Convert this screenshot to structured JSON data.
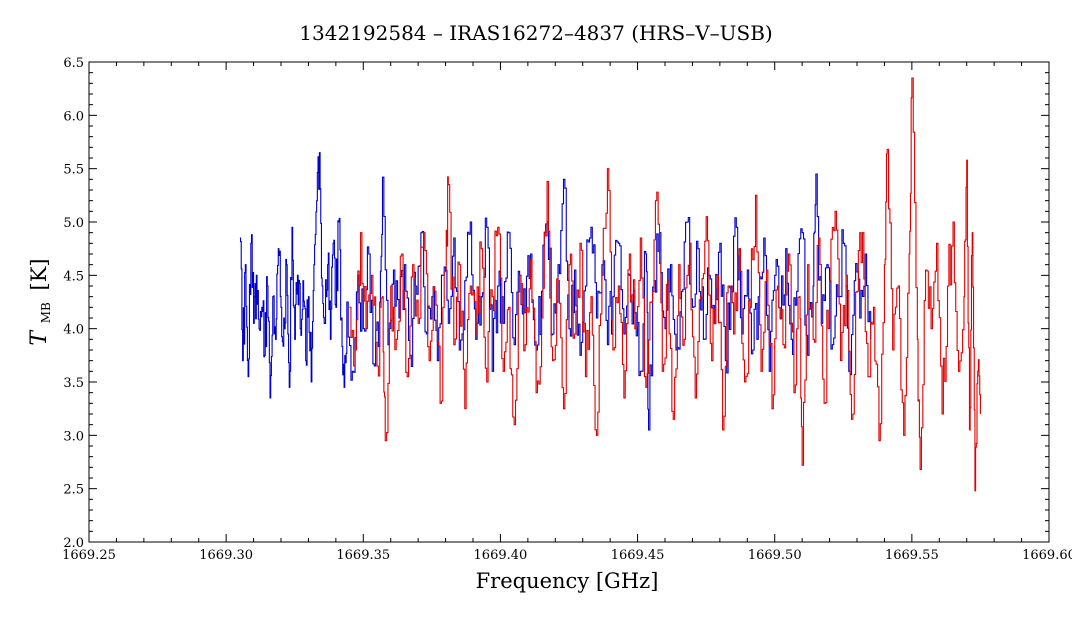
{
  "chart_data": {
    "type": "line",
    "title": "1342192584 – IRAS16272–4837 (HRS–V–USB)",
    "xlabel": "Frequency [GHz]",
    "ylabel_main": "T",
    "ylabel_sub": "MB",
    "ylabel_unit": "[K]",
    "xlim": [
      1669.25,
      1669.6
    ],
    "ylim": [
      2.0,
      6.5
    ],
    "x_ticks": [
      "1669.25",
      "1669.30",
      "1669.35",
      "1669.40",
      "1669.45",
      "1669.50",
      "1669.55",
      "1669.60"
    ],
    "y_ticks": [
      "2.0",
      "2.5",
      "3.0",
      "3.5",
      "4.0",
      "4.5",
      "5.0",
      "5.5",
      "6.0",
      "6.5"
    ],
    "grid": false,
    "series": [
      {
        "color": "#0000cc",
        "x_range": [
          1669.305,
          1669.535
        ],
        "points": [
          [
            1669.305,
            4.85
          ],
          [
            1669.306,
            3.7
          ],
          [
            1669.307,
            4.6
          ],
          [
            1669.308,
            3.55
          ],
          [
            1669.309,
            4.8
          ],
          [
            1669.31,
            4.05
          ],
          [
            1669.311,
            4.5
          ],
          [
            1669.312,
            4.0
          ],
          [
            1669.313,
            4.2
          ],
          [
            1669.314,
            3.75
          ],
          [
            1669.315,
            4.4
          ],
          [
            1669.316,
            3.35
          ],
          [
            1669.317,
            4.3
          ],
          [
            1669.318,
            3.9
          ],
          [
            1669.319,
            4.75
          ],
          [
            1669.32,
            4.2
          ],
          [
            1669.321,
            4.1
          ],
          [
            1669.322,
            4.6
          ],
          [
            1669.323,
            3.45
          ],
          [
            1669.324,
            4.95
          ],
          [
            1669.325,
            3.9
          ],
          [
            1669.326,
            4.5
          ],
          [
            1669.327,
            4.0
          ],
          [
            1669.328,
            4.45
          ],
          [
            1669.329,
            3.7
          ],
          [
            1669.33,
            4.3
          ],
          [
            1669.331,
            3.5
          ],
          [
            1669.332,
            4.6
          ],
          [
            1669.333,
            5.2
          ],
          [
            1669.334,
            5.65
          ],
          [
            1669.335,
            4.4
          ],
          [
            1669.336,
            4.05
          ],
          [
            1669.337,
            4.6
          ],
          [
            1669.338,
            3.9
          ],
          [
            1669.339,
            4.8
          ],
          [
            1669.34,
            4.2
          ],
          [
            1669.341,
            5.0
          ],
          [
            1669.342,
            4.1
          ],
          [
            1669.343,
            3.45
          ],
          [
            1669.344,
            4.25
          ],
          [
            1669.346,
            3.6
          ],
          [
            1669.348,
            4.5
          ],
          [
            1669.35,
            4.0
          ],
          [
            1669.352,
            4.7
          ],
          [
            1669.354,
            3.65
          ],
          [
            1669.356,
            4.25
          ],
          [
            1669.357,
            5.42
          ],
          [
            1669.359,
            3.85
          ],
          [
            1669.361,
            4.55
          ],
          [
            1669.363,
            4.1
          ],
          [
            1669.365,
            4.6
          ],
          [
            1669.367,
            3.75
          ],
          [
            1669.369,
            4.4
          ],
          [
            1669.371,
            4.9
          ],
          [
            1669.373,
            3.95
          ],
          [
            1669.375,
            4.3
          ],
          [
            1669.377,
            3.7
          ],
          [
            1669.379,
            4.5
          ],
          [
            1669.381,
            4.05
          ],
          [
            1669.383,
            4.85
          ],
          [
            1669.385,
            3.8
          ],
          [
            1669.387,
            4.45
          ],
          [
            1669.389,
            5.0
          ],
          [
            1669.391,
            3.9
          ],
          [
            1669.393,
            4.3
          ],
          [
            1669.395,
            4.95
          ],
          [
            1669.397,
            3.6
          ],
          [
            1669.399,
            4.4
          ],
          [
            1669.401,
            4.05
          ],
          [
            1669.403,
            4.9
          ],
          [
            1669.405,
            3.85
          ],
          [
            1669.407,
            4.5
          ],
          [
            1669.409,
            4.15
          ],
          [
            1669.411,
            4.7
          ],
          [
            1669.413,
            3.8
          ],
          [
            1669.415,
            4.35
          ],
          [
            1669.417,
            5.0
          ],
          [
            1669.419,
            3.95
          ],
          [
            1669.421,
            4.6
          ],
          [
            1669.423,
            5.4
          ],
          [
            1669.425,
            4.0
          ],
          [
            1669.427,
            4.55
          ],
          [
            1669.429,
            3.75
          ],
          [
            1669.431,
            4.4
          ],
          [
            1669.433,
            4.95
          ],
          [
            1669.435,
            4.1
          ],
          [
            1669.437,
            4.6
          ],
          [
            1669.439,
            3.85
          ],
          [
            1669.441,
            4.3
          ],
          [
            1669.443,
            4.8
          ],
          [
            1669.445,
            3.95
          ],
          [
            1669.447,
            4.5
          ],
          [
            1669.449,
            4.15
          ],
          [
            1669.451,
            3.6
          ],
          [
            1669.453,
            4.7
          ],
          [
            1669.454,
            3.05
          ],
          [
            1669.456,
            4.45
          ],
          [
            1669.458,
            4.9
          ],
          [
            1669.46,
            4.0
          ],
          [
            1669.462,
            4.6
          ],
          [
            1669.464,
            3.8
          ],
          [
            1669.466,
            4.35
          ],
          [
            1669.468,
            5.0
          ],
          [
            1669.47,
            4.2
          ],
          [
            1669.472,
            4.75
          ],
          [
            1669.474,
            3.9
          ],
          [
            1669.476,
            4.5
          ],
          [
            1669.478,
            4.05
          ],
          [
            1669.48,
            4.8
          ],
          [
            1669.482,
            3.7
          ],
          [
            1669.484,
            4.4
          ],
          [
            1669.486,
            4.95
          ],
          [
            1669.488,
            3.95
          ],
          [
            1669.49,
            4.55
          ],
          [
            1669.492,
            3.8
          ],
          [
            1669.494,
            4.3
          ],
          [
            1669.496,
            4.85
          ],
          [
            1669.498,
            3.6
          ],
          [
            1669.5,
            4.5
          ],
          [
            1669.502,
            4.1
          ],
          [
            1669.504,
            4.75
          ],
          [
            1669.506,
            3.9
          ],
          [
            1669.508,
            4.35
          ],
          [
            1669.51,
            4.9
          ],
          [
            1669.512,
            3.75
          ],
          [
            1669.514,
            4.4
          ],
          [
            1669.515,
            5.45
          ],
          [
            1669.517,
            4.05
          ],
          [
            1669.519,
            4.6
          ],
          [
            1669.521,
            3.85
          ],
          [
            1669.523,
            4.3
          ],
          [
            1669.525,
            4.8
          ],
          [
            1669.527,
            3.6
          ],
          [
            1669.529,
            4.45
          ],
          [
            1669.531,
            4.1
          ],
          [
            1669.533,
            4.7
          ],
          [
            1669.535,
            3.9
          ]
        ]
      },
      {
        "color": "#e00000",
        "x_range": [
          1669.345,
          1669.575
        ],
        "points": [
          [
            1669.345,
            4.2
          ],
          [
            1669.347,
            3.8
          ],
          [
            1669.349,
            4.9
          ],
          [
            1669.351,
            4.0
          ],
          [
            1669.353,
            4.5
          ],
          [
            1669.355,
            3.65
          ],
          [
            1669.357,
            4.3
          ],
          [
            1669.358,
            2.95
          ],
          [
            1669.36,
            4.4
          ],
          [
            1669.362,
            3.9
          ],
          [
            1669.364,
            4.7
          ],
          [
            1669.366,
            3.55
          ],
          [
            1669.368,
            4.6
          ],
          [
            1669.37,
            4.05
          ],
          [
            1669.372,
            4.9
          ],
          [
            1669.374,
            3.7
          ],
          [
            1669.376,
            4.35
          ],
          [
            1669.378,
            3.3
          ],
          [
            1669.38,
            4.55
          ],
          [
            1669.381,
            5.35
          ],
          [
            1669.383,
            3.85
          ],
          [
            1669.385,
            4.6
          ],
          [
            1669.387,
            3.25
          ],
          [
            1669.389,
            4.4
          ],
          [
            1669.391,
            3.95
          ],
          [
            1669.393,
            4.75
          ],
          [
            1669.395,
            3.5
          ],
          [
            1669.397,
            4.3
          ],
          [
            1669.399,
            4.95
          ],
          [
            1669.401,
            3.6
          ],
          [
            1669.403,
            4.2
          ],
          [
            1669.405,
            3.1
          ],
          [
            1669.407,
            4.5
          ],
          [
            1669.409,
            3.85
          ],
          [
            1669.411,
            4.65
          ],
          [
            1669.413,
            3.4
          ],
          [
            1669.415,
            4.1
          ],
          [
            1669.417,
            5.38
          ],
          [
            1669.419,
            3.7
          ],
          [
            1669.421,
            4.45
          ],
          [
            1669.423,
            3.25
          ],
          [
            1669.425,
            4.6
          ],
          [
            1669.427,
            3.95
          ],
          [
            1669.429,
            4.8
          ],
          [
            1669.431,
            3.55
          ],
          [
            1669.433,
            4.3
          ],
          [
            1669.435,
            3.0
          ],
          [
            1669.437,
            4.5
          ],
          [
            1669.439,
            5.5
          ],
          [
            1669.441,
            3.8
          ],
          [
            1669.443,
            4.4
          ],
          [
            1669.445,
            3.35
          ],
          [
            1669.447,
            4.7
          ],
          [
            1669.449,
            4.0
          ],
          [
            1669.451,
            4.85
          ],
          [
            1669.453,
            3.45
          ],
          [
            1669.455,
            4.25
          ],
          [
            1669.457,
            5.28
          ],
          [
            1669.459,
            3.6
          ],
          [
            1669.461,
            4.45
          ],
          [
            1669.463,
            3.15
          ],
          [
            1669.465,
            4.6
          ],
          [
            1669.467,
            3.9
          ],
          [
            1669.469,
            4.8
          ],
          [
            1669.471,
            3.35
          ],
          [
            1669.473,
            4.3
          ],
          [
            1669.475,
            5.05
          ],
          [
            1669.477,
            3.7
          ],
          [
            1669.479,
            4.5
          ],
          [
            1669.481,
            3.05
          ],
          [
            1669.483,
            4.4
          ],
          [
            1669.485,
            3.95
          ],
          [
            1669.487,
            4.75
          ],
          [
            1669.489,
            3.5
          ],
          [
            1669.491,
            4.2
          ],
          [
            1669.493,
            5.25
          ],
          [
            1669.495,
            3.6
          ],
          [
            1669.497,
            4.55
          ],
          [
            1669.499,
            3.25
          ],
          [
            1669.501,
            4.4
          ],
          [
            1669.503,
            3.85
          ],
          [
            1669.505,
            4.7
          ],
          [
            1669.507,
            3.4
          ],
          [
            1669.509,
            4.3
          ],
          [
            1669.51,
            2.72
          ],
          [
            1669.512,
            4.6
          ],
          [
            1669.514,
            3.9
          ],
          [
            1669.516,
            4.85
          ],
          [
            1669.518,
            3.3
          ],
          [
            1669.52,
            4.45
          ],
          [
            1669.522,
            5.1
          ],
          [
            1669.524,
            3.7
          ],
          [
            1669.526,
            4.5
          ],
          [
            1669.528,
            3.15
          ],
          [
            1669.53,
            4.35
          ],
          [
            1669.532,
            4.9
          ],
          [
            1669.534,
            3.55
          ],
          [
            1669.536,
            4.2
          ],
          [
            1669.538,
            2.95
          ],
          [
            1669.54,
            4.6
          ],
          [
            1669.541,
            5.68
          ],
          [
            1669.543,
            3.8
          ],
          [
            1669.545,
            4.4
          ],
          [
            1669.547,
            3.0
          ],
          [
            1669.549,
            4.7
          ],
          [
            1669.55,
            6.35
          ],
          [
            1669.552,
            3.9
          ],
          [
            1669.553,
            2.68
          ],
          [
            1669.555,
            4.55
          ],
          [
            1669.557,
            4.0
          ],
          [
            1669.559,
            4.8
          ],
          [
            1669.561,
            3.2
          ],
          [
            1669.563,
            4.4
          ],
          [
            1669.565,
            5.0
          ],
          [
            1669.567,
            3.6
          ],
          [
            1669.569,
            4.3
          ],
          [
            1669.57,
            5.58
          ],
          [
            1669.571,
            3.05
          ],
          [
            1669.572,
            4.9
          ],
          [
            1669.573,
            2.48
          ],
          [
            1669.574,
            3.6
          ],
          [
            1669.575,
            3.2
          ]
        ]
      }
    ]
  }
}
